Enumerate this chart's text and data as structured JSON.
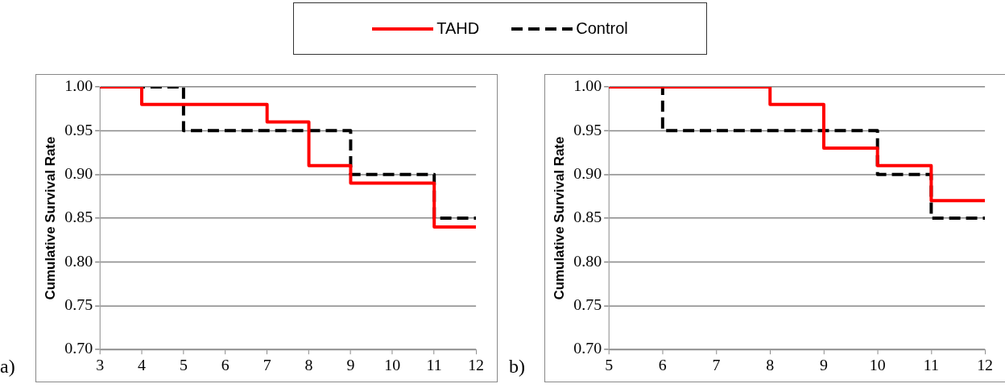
{
  "chart_data": [
    {
      "type": "step",
      "ylabel": "Cumulative Survival Rate",
      "annotations": [
        "a)"
      ],
      "x": [
        3,
        4,
        5,
        6,
        7,
        8,
        9,
        10,
        11,
        12
      ],
      "xlim": [
        3,
        12
      ],
      "xticks": [
        3,
        4,
        5,
        6,
        7,
        8,
        9,
        10,
        11,
        12
      ],
      "ylim": [
        0.7,
        1.0
      ],
      "yticks": [
        {
          "value": 0.7,
          "label": "0.70"
        },
        {
          "value": 0.75,
          "label": "0.75"
        },
        {
          "value": 0.8,
          "label": "0.80"
        },
        {
          "value": 0.85,
          "label": "0.85"
        },
        {
          "value": 0.9,
          "label": "0.90"
        },
        {
          "value": 0.95,
          "label": "0.95"
        },
        {
          "value": 1.0,
          "label": "1.00"
        }
      ],
      "grid": "y",
      "legend": "top",
      "marker": "none",
      "series": [
        {
          "name": "TAHD",
          "color": "#ff0000",
          "line_style": "solid",
          "values": [
            1,
            0.98,
            0.98,
            0.98,
            0.96,
            0.91,
            0.89,
            0.89,
            0.84,
            0.84
          ]
        },
        {
          "name": "Control",
          "color": "#000000",
          "line_style": "dashed",
          "values": [
            1,
            1,
            0.95,
            0.95,
            0.95,
            0.95,
            0.9,
            0.9,
            0.85,
            0.85
          ]
        }
      ]
    },
    {
      "type": "step",
      "ylabel": "Cumulative Survival Rate",
      "annotations": [
        "b)"
      ],
      "x": [
        5,
        6,
        7,
        8,
        9,
        10,
        11,
        12
      ],
      "xlim": [
        5,
        12
      ],
      "xticks": [
        5,
        6,
        7,
        8,
        9,
        10,
        11,
        12
      ],
      "ylim": [
        0.7,
        1.0
      ],
      "yticks": [
        {
          "value": 0.7,
          "label": "0.70"
        },
        {
          "value": 0.75,
          "label": "0.75"
        },
        {
          "value": 0.8,
          "label": "0.80"
        },
        {
          "value": 0.85,
          "label": "0.85"
        },
        {
          "value": 0.9,
          "label": "0.90"
        },
        {
          "value": 0.95,
          "label": "0.95"
        },
        {
          "value": 1.0,
          "label": "1.00"
        }
      ],
      "grid": "y",
      "marker": "none",
      "series": [
        {
          "color": "#ff0000",
          "line_style": "solid",
          "values": [
            1,
            1,
            1,
            0.98,
            0.93,
            0.91,
            0.87,
            0.87
          ]
        },
        {
          "color": "#000000",
          "line_style": "dashed",
          "values": [
            1,
            0.95,
            0.95,
            0.95,
            0.95,
            0.9,
            0.85,
            0.85
          ]
        }
      ]
    }
  ]
}
